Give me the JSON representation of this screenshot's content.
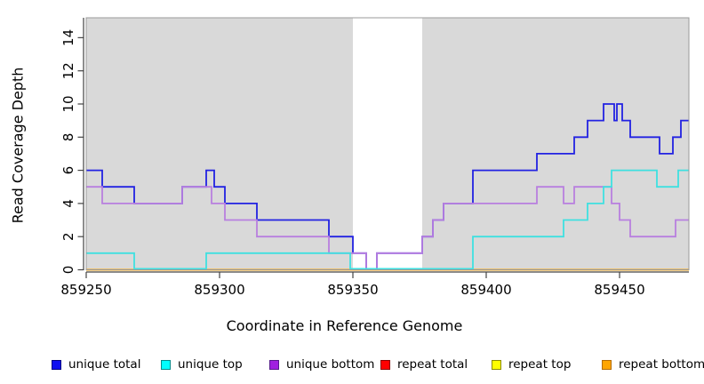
{
  "chart_data": {
    "type": "line",
    "subtype": "step-coverage",
    "title": "",
    "xlabel": "Coordinate in Reference Genome",
    "ylabel": "Read Coverage Depth",
    "xlim": [
      859250,
      859476
    ],
    "ylim": [
      0,
      15.2
    ],
    "x_ticks": [
      859250,
      859300,
      859350,
      859400,
      859450
    ],
    "y_ticks": [
      0,
      2,
      4,
      6,
      8,
      10,
      12,
      14
    ],
    "grid": "off",
    "legend_position": "bottom",
    "panel_bg": "#d9d9d9",
    "masked_region": {
      "x0": 859350,
      "x1": 859376,
      "color": "#ffffff"
    },
    "series": [
      {
        "name": "unique total",
        "color": "#2222e2",
        "legend_fill": "#0f0ff0",
        "legend_border": "#000080",
        "group": "unique",
        "steps": [
          [
            859250,
            6
          ],
          [
            859256,
            5
          ],
          [
            859268,
            4
          ],
          [
            859286,
            5
          ],
          [
            859295,
            6
          ],
          [
            859298,
            5
          ],
          [
            859302,
            4
          ],
          [
            859314,
            3
          ],
          [
            859341,
            2
          ],
          [
            859350,
            1
          ],
          [
            859355,
            0
          ],
          [
            859359,
            1
          ],
          [
            859376,
            2
          ],
          [
            859380,
            3
          ],
          [
            859384,
            4
          ],
          [
            859395,
            6
          ],
          [
            859419,
            7
          ],
          [
            859433,
            8
          ],
          [
            859438,
            9
          ],
          [
            859444,
            10
          ],
          [
            859448,
            9
          ],
          [
            859449,
            10
          ],
          [
            859451,
            9
          ],
          [
            859454,
            8
          ],
          [
            859465,
            7
          ],
          [
            859470,
            8
          ],
          [
            859473,
            9
          ]
        ],
        "end": 859476
      },
      {
        "name": "unique top",
        "color": "#3fe0e0",
        "legend_fill": "#00ffff",
        "legend_border": "#008b8b",
        "group": "unique",
        "steps": [
          [
            859250,
            1
          ],
          [
            859268,
            0
          ],
          [
            859295,
            1
          ],
          [
            859349,
            0
          ],
          [
            859395,
            2
          ],
          [
            859429,
            3
          ],
          [
            859438,
            4
          ],
          [
            859444,
            5
          ],
          [
            859447,
            6
          ],
          [
            859464,
            5
          ],
          [
            859472,
            6
          ]
        ],
        "end": 859476
      },
      {
        "name": "unique bottom",
        "color": "#b87fdf",
        "legend_fill": "#a020e0",
        "legend_border": "#551a8b",
        "group": "unique",
        "steps": [
          [
            859250,
            5
          ],
          [
            859256,
            4
          ],
          [
            859286,
            5
          ],
          [
            859297,
            4
          ],
          [
            859302,
            3
          ],
          [
            859314,
            2
          ],
          [
            859341,
            1
          ],
          [
            859355,
            0
          ],
          [
            859359,
            1
          ],
          [
            859376,
            2
          ],
          [
            859380,
            3
          ],
          [
            859384,
            4
          ],
          [
            859419,
            5
          ],
          [
            859429,
            4
          ],
          [
            859433,
            5
          ],
          [
            859447,
            4
          ],
          [
            859450,
            3
          ],
          [
            859454,
            2
          ],
          [
            859471,
            3
          ]
        ],
        "end": 859476
      },
      {
        "name": "repeat total",
        "color": "#dd0000",
        "legend_fill": "#ff0000",
        "legend_border": "#8b0000",
        "group": "repeat",
        "steps": [
          [
            859250,
            0
          ]
        ],
        "end": 859476
      },
      {
        "name": "repeat top",
        "color": "#eeee00",
        "legend_fill": "#ffff00",
        "legend_border": "#8b8b00",
        "group": "repeat",
        "steps": [
          [
            859250,
            0
          ]
        ],
        "end": 859476
      },
      {
        "name": "repeat bottom",
        "color": "#ff9d00",
        "legend_fill": "#ffa500",
        "legend_border": "#b36b00",
        "group": "repeat",
        "steps": [
          [
            859250,
            0
          ]
        ],
        "end": 859476
      }
    ]
  }
}
